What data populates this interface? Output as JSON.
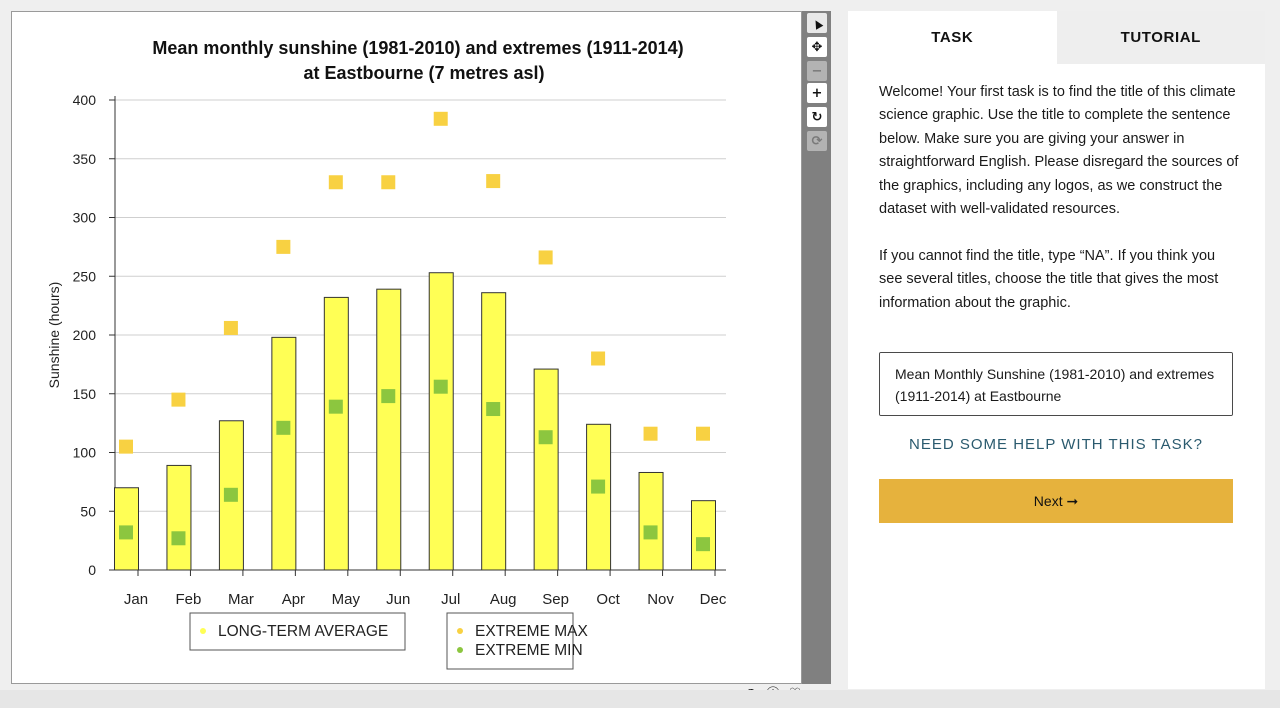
{
  "chart_data": {
    "type": "bar",
    "title": "Mean monthly sunshine (1981-2010) and extremes (1911-2014)",
    "subtitle": "at Eastbourne (7 metres asl)",
    "ylabel": "Sunshine (hours)",
    "xlabel": "",
    "ylim": [
      0,
      400
    ],
    "yticks": [
      0,
      50,
      100,
      150,
      200,
      250,
      300,
      350,
      400
    ],
    "grid": true,
    "categories": [
      "Jan",
      "Feb",
      "Mar",
      "Apr",
      "May",
      "Jun",
      "Jul",
      "Aug",
      "Sep",
      "Oct",
      "Nov",
      "Dec"
    ],
    "series": [
      {
        "name": "LONG-TERM AVERAGE",
        "type": "bar",
        "color": "#ffff55",
        "values": [
          70,
          89,
          127,
          198,
          232,
          239,
          253,
          236,
          171,
          124,
          83,
          59
        ]
      },
      {
        "name": "EXTREME MAX",
        "type": "scatter",
        "color": "#f8d142",
        "values": [
          105,
          145,
          206,
          275,
          330,
          330,
          384,
          331,
          266,
          180,
          116,
          116
        ]
      },
      {
        "name": "EXTREME MIN",
        "type": "scatter",
        "color": "#8cc63f",
        "values": [
          32,
          27,
          64,
          121,
          139,
          148,
          156,
          137,
          113,
          71,
          32,
          22
        ]
      }
    ],
    "legend": {
      "placement": "bottom"
    }
  },
  "colors": {
    "accent": "#e6b23d",
    "link": "#2a5a6e",
    "toolbar": "#808080"
  },
  "toolbar": {
    "tools": [
      {
        "name": "pointer-tool",
        "icon": "pointer-icon",
        "glyph": "▲"
      },
      {
        "name": "pan-tool",
        "icon": "move-icon",
        "glyph": "✥"
      },
      {
        "name": "zoom-out-tool",
        "icon": "minus-icon",
        "glyph": "−"
      },
      {
        "name": "zoom-in-tool",
        "icon": "plus-icon",
        "glyph": "+"
      },
      {
        "name": "rotate-tool",
        "icon": "rotate-icon",
        "glyph": "↻"
      },
      {
        "name": "reset-tool",
        "icon": "refresh-icon",
        "glyph": "⟳"
      }
    ]
  },
  "bottom_icons": [
    {
      "name": "contrast-icon",
      "glyph": "◑"
    },
    {
      "name": "info-icon",
      "glyph": "ⓘ"
    },
    {
      "name": "heart-icon",
      "glyph": "♡"
    },
    {
      "name": "list-icon",
      "glyph": "≡"
    }
  ],
  "panel": {
    "tabs": [
      {
        "label": "TASK",
        "active": true
      },
      {
        "label": "TUTORIAL",
        "active": false
      }
    ],
    "paragraph1": "Welcome! Your first task is to find the title of this climate science graphic. Use the title to complete the sentence below. Make sure you are giving your answer in straightforward English. Please disregard the sources of the graphics, including any logos, as we construct the dataset with well-validated resources.",
    "paragraph2": "If you cannot find the title, type “NA”. If you think you see several titles, choose the title that gives the most information about the graphic.",
    "answer_value": "Mean Monthly Sunshine (1981-2010) and extremes (1911-2014) at Eastbourne",
    "help_link": "NEED SOME HELP WITH THIS TASK?",
    "next_label": "Next ➞"
  }
}
